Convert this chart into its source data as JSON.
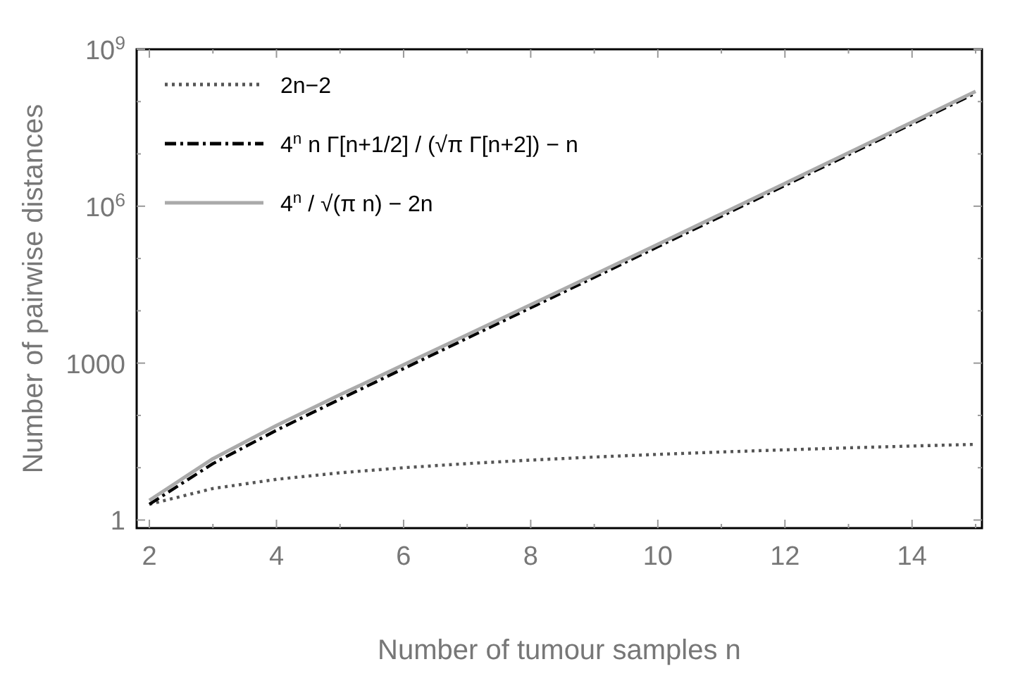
{
  "chart_data": {
    "type": "line",
    "xlabel": "Number of tumour samples n",
    "ylabel": "Number of pairwise distances",
    "x": [
      2,
      3,
      4,
      5,
      6,
      7,
      8,
      9,
      10,
      11,
      12,
      13,
      14,
      15
    ],
    "series": [
      {
        "name": "2n−2",
        "color": "#555555",
        "line_style": "dotted",
        "values": [
          2,
          4,
          6,
          8,
          10,
          12,
          14,
          16,
          18,
          20,
          22,
          24,
          26,
          28
        ]
      },
      {
        "name": "4$^{n}$ n Γ[n+1/2] / (√π Γ[n+2]) − n",
        "color": "#000000",
        "line_style": "dashdot",
        "values": [
          2,
          12,
          52,
          205,
          786,
          2996,
          11432,
          43749,
          167950,
          646635,
          2496132,
          9657687,
          37442146,
          145422660
        ]
      },
      {
        "name": "4$^{n}$ / √(π n) − 2n",
        "color": "#aaaaaa",
        "line_style": "solid",
        "values": [
          2.38,
          14.85,
          64.2,
          248.4,
          931.4,
          3480,
          13057,
          49285,
          187058,
          713478,
          2732422,
          10500974,
          40476000,
          156415000
        ]
      }
    ],
    "log": "y",
    "xlim": [
      1.8,
      15.1
    ],
    "ylim": [
      0.7,
      1000000000
    ],
    "xticks": [
      2,
      {
        "value": 3,
        "label": null
      },
      4,
      {
        "value": 5,
        "label": null
      },
      6,
      {
        "value": 7,
        "label": null
      },
      8,
      {
        "value": 9,
        "label": null
      },
      10,
      {
        "value": 11,
        "label": null
      },
      12,
      {
        "value": 13,
        "label": null
      },
      14,
      {
        "value": 15,
        "label": null
      }
    ],
    "yticks": [
      1,
      {
        "value": 10,
        "label": null
      },
      {
        "value": 100,
        "label": null
      },
      1000,
      {
        "value": 10000,
        "label": null
      },
      {
        "value": 100000,
        "label": null
      },
      {
        "value": 1000000,
        "label": "10$^{6}$"
      },
      {
        "value": 10000000,
        "label": null
      },
      {
        "value": 100000000,
        "label": null
      },
      {
        "value": 1000000000,
        "label": "10$^{9}$"
      }
    ],
    "legend": "top left",
    "grid": false
  }
}
